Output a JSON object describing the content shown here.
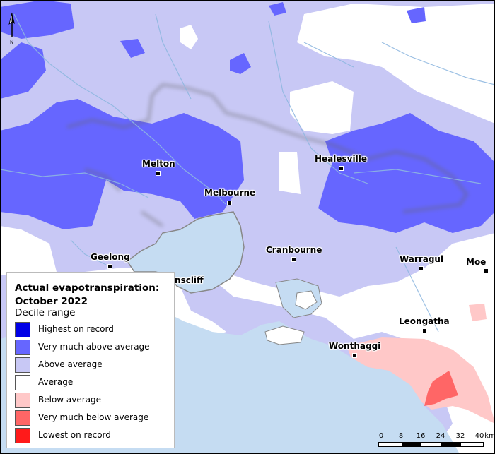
{
  "legend": {
    "title": "Actual evapotranspiration: October 2022",
    "subtitle": "Decile range",
    "items": [
      {
        "label": "Highest on record",
        "color": "#0000e6"
      },
      {
        "label": "Very much above average",
        "color": "#6666ff"
      },
      {
        "label": "Above average",
        "color": "#c8c8f5"
      },
      {
        "label": "Average",
        "color": "#ffffff"
      },
      {
        "label": "Below average",
        "color": "#ffc8c8"
      },
      {
        "label": "Very much below average",
        "color": "#ff6666"
      },
      {
        "label": "Lowest on record",
        "color": "#ff1a1a"
      }
    ]
  },
  "towns": {
    "melton": "Melton",
    "melbourne": "Melbourne",
    "healesville": "Healesville",
    "geelong": "Geelong",
    "queenscliff": "Queenscliff",
    "cranbourne": "Cranbourne",
    "warragul": "Warragul",
    "moe": "Moe",
    "leongatha": "Leongatha",
    "wonthaggi": "Wonthaggi"
  },
  "north_arrow": "N",
  "scale_bar": {
    "ticks": [
      "0",
      "8",
      "16",
      "24",
      "32",
      "40"
    ],
    "unit": "km"
  },
  "colors": {
    "water": "#c5dcf2",
    "rivers": "#8fb8e0"
  }
}
